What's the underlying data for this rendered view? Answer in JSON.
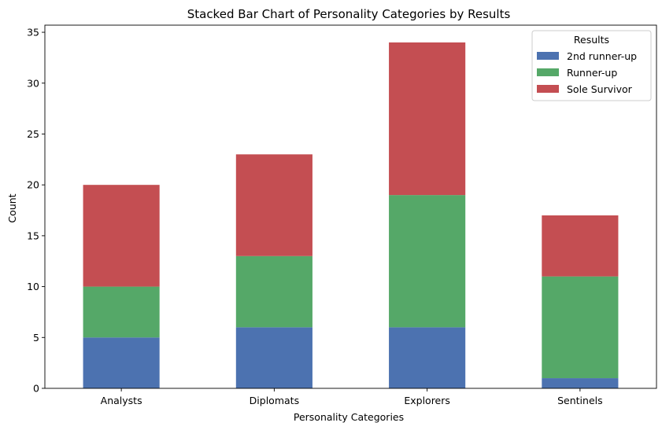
{
  "chart_data": {
    "type": "bar",
    "stacked": true,
    "title": "Stacked Bar Chart of Personality Categories by Results",
    "xlabel": "Personality Categories",
    "ylabel": "Count",
    "categories": [
      "Analysts",
      "Diplomats",
      "Explorers",
      "Sentinels"
    ],
    "series": [
      {
        "name": "2nd runner-up",
        "values": [
          5,
          6,
          6,
          1
        ],
        "color": "#4c72b0"
      },
      {
        "name": "Runner-up",
        "values": [
          5,
          7,
          13,
          10
        ],
        "color": "#55a868"
      },
      {
        "name": "Sole Survivor",
        "values": [
          10,
          10,
          15,
          6
        ],
        "color": "#c44e52"
      }
    ],
    "ylim": [
      0,
      35.7
    ],
    "yticks": [
      0,
      5,
      10,
      15,
      20,
      25,
      30,
      35
    ],
    "grid": false,
    "legend": {
      "title": "Results",
      "placement": "top-right"
    }
  }
}
